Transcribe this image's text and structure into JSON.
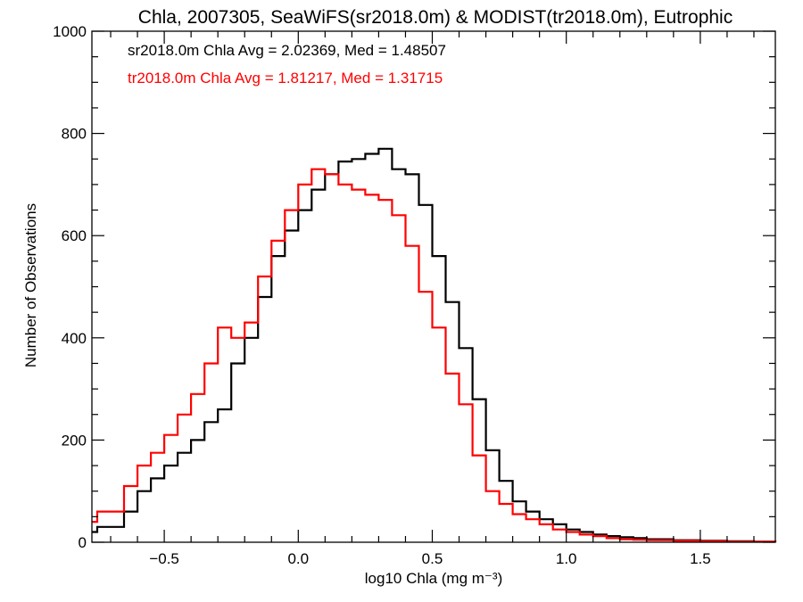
{
  "chart_data": {
    "type": "step-histogram",
    "title": "Chla, 2007305, SeaWiFS(sr2018.0m) & MODIST(tr2018.0m), Eutrophic",
    "xlabel": "log10 Chla (mg m⁻³)",
    "ylabel": "Number of Observations",
    "xlim": [
      -0.77,
      1.78
    ],
    "ylim": [
      0,
      1000
    ],
    "xticks": [
      -0.5,
      0.0,
      0.5,
      1.0,
      1.5
    ],
    "xtick_labels": [
      "−0.5",
      "0.0",
      "0.5",
      "1.0",
      "1.5"
    ],
    "yticks": [
      0,
      200,
      400,
      600,
      800,
      1000
    ],
    "ytick_labels": [
      "0",
      "200",
      "400",
      "600",
      "800",
      "1000"
    ],
    "grid": false,
    "annotations": [
      {
        "text": "sr2018.0m Chla Avg = 2.02369, Med = 1.48507",
        "color": "#000000"
      },
      {
        "text": "tr2018.0m Chla Avg = 1.81217, Med = 1.31715",
        "color": "#ff0000"
      }
    ],
    "series": [
      {
        "color": "#000000",
        "x": [
          -0.75,
          -0.7,
          -0.65,
          -0.6,
          -0.55,
          -0.5,
          -0.45,
          -0.4,
          -0.35,
          -0.3,
          -0.25,
          -0.2,
          -0.15,
          -0.1,
          -0.05,
          0.0,
          0.05,
          0.1,
          0.15,
          0.2,
          0.25,
          0.3,
          0.35,
          0.4,
          0.45,
          0.5,
          0.55,
          0.6,
          0.65,
          0.7,
          0.75,
          0.8,
          0.85,
          0.9,
          0.95,
          1.0,
          1.05,
          1.1,
          1.15,
          1.2,
          1.25,
          1.3,
          1.4,
          1.5,
          1.6,
          1.7,
          1.78
        ],
        "y": [
          20,
          30,
          60,
          100,
          125,
          150,
          175,
          200,
          235,
          260,
          350,
          400,
          480,
          560,
          610,
          650,
          690,
          720,
          745,
          750,
          760,
          770,
          730,
          720,
          660,
          560,
          470,
          380,
          280,
          180,
          120,
          80,
          60,
          45,
          35,
          25,
          20,
          15,
          12,
          10,
          8,
          6,
          4,
          3,
          2,
          1,
          0
        ]
      },
      {
        "color": "#ff0000",
        "x": [
          -0.75,
          -0.7,
          -0.65,
          -0.6,
          -0.55,
          -0.5,
          -0.45,
          -0.4,
          -0.35,
          -0.3,
          -0.25,
          -0.2,
          -0.15,
          -0.1,
          -0.05,
          0.0,
          0.05,
          0.1,
          0.15,
          0.2,
          0.25,
          0.3,
          0.35,
          0.4,
          0.45,
          0.5,
          0.55,
          0.6,
          0.65,
          0.7,
          0.75,
          0.8,
          0.85,
          0.9,
          0.95,
          1.0,
          1.05,
          1.1,
          1.15,
          1.2,
          1.25,
          1.3,
          1.4,
          1.5,
          1.6,
          1.7,
          1.78
        ],
        "y": [
          40,
          60,
          110,
          150,
          175,
          210,
          250,
          290,
          350,
          420,
          400,
          430,
          520,
          590,
          650,
          700,
          730,
          720,
          700,
          690,
          680,
          670,
          640,
          580,
          490,
          420,
          330,
          270,
          170,
          100,
          75,
          55,
          45,
          35,
          25,
          20,
          15,
          12,
          8,
          6,
          5,
          4,
          3,
          2,
          1,
          1,
          0
        ]
      }
    ]
  }
}
